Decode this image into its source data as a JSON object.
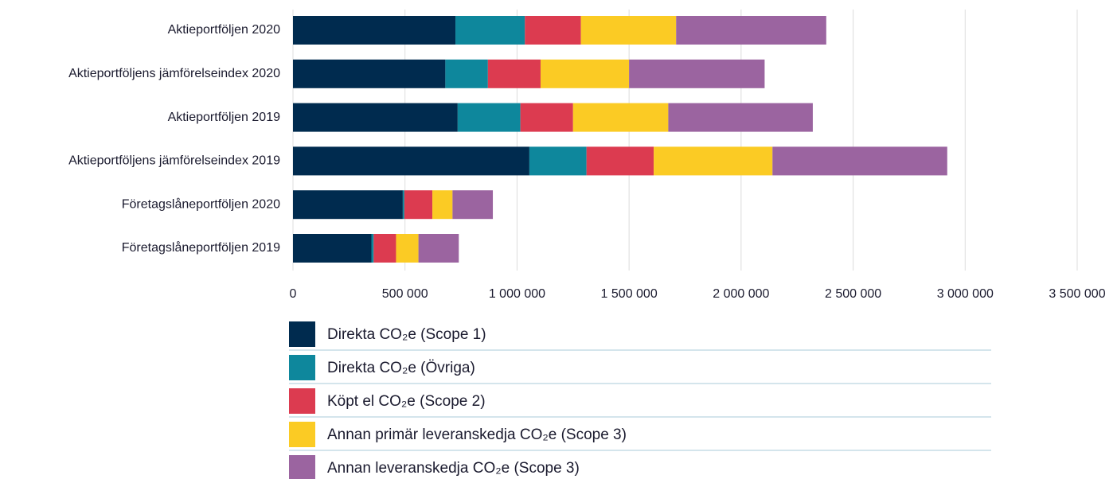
{
  "chart_data": {
    "type": "stacked-barh",
    "categories": [
      "Aktieportföljen 2020",
      "Aktieportföljens jämförelseindex 2020",
      "Aktieportföljen 2019",
      "Aktieportföljens jämförelseindex 2019",
      "Företagslåneportföljen 2020",
      "Företagslåneportföljen 2019"
    ],
    "series": [
      {
        "name": "Direkta CO₂e (Scope 1)",
        "color": "#002b4f",
        "values": [
          725000,
          680000,
          735000,
          1055000,
          490000,
          350000
        ]
      },
      {
        "name": "Direkta CO₂e (Övriga)",
        "color": "#0e879c",
        "values": [
          310000,
          190000,
          280000,
          255000,
          7000,
          10000
        ]
      },
      {
        "name": "Köpt el CO₂e (Scope 2)",
        "color": "#dc3b50",
        "values": [
          250000,
          235000,
          235000,
          300000,
          125000,
          100000
        ]
      },
      {
        "name": "Annan primär leveranskedja CO₂e (Scope 3)",
        "color": "#fbcb24",
        "values": [
          425000,
          395000,
          425000,
          530000,
          90000,
          100000
        ]
      },
      {
        "name": "Annan leveranskedja CO₂e (Scope 3)",
        "color": "#9b64a0",
        "values": [
          670000,
          605000,
          645000,
          780000,
          180000,
          180000
        ]
      }
    ],
    "xlim": [
      0,
      3500000
    ],
    "xticks": [
      0,
      {
        "value": 500000,
        "label": "500 000"
      },
      {
        "value": 1000000,
        "label": "1 000 000"
      },
      {
        "value": 1500000,
        "label": "1 500 000"
      },
      {
        "value": 2000000,
        "label": "2 000 000"
      },
      {
        "value": 2500000,
        "label": "2 500 000"
      },
      {
        "value": 3000000,
        "label": "3 000 000"
      },
      {
        "value": 3500000,
        "label": "3 500 000"
      }
    ],
    "grid": true
  }
}
